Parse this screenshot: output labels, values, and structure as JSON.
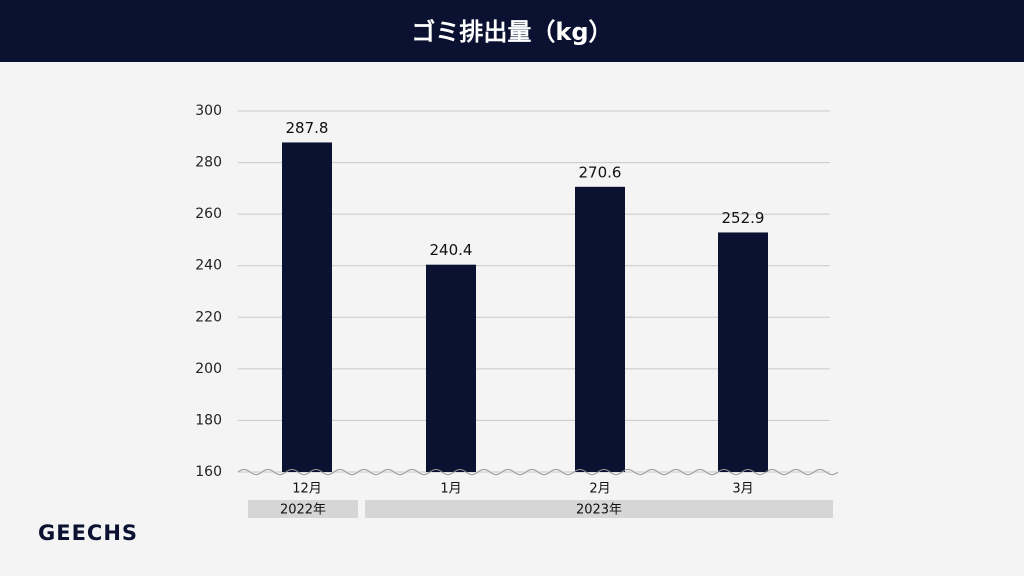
{
  "chart_data": {
    "type": "bar",
    "title": "ゴミ排出量（kg）",
    "categories": [
      "12月",
      "1月",
      "2月",
      "3月"
    ],
    "values": [
      287.8,
      240.4,
      270.6,
      252.9
    ],
    "color": "#0b1130",
    "groups": [
      "2022年",
      "2023年"
    ],
    "ylim": [
      160,
      300
    ],
    "yticks": [
      160,
      180,
      200,
      220,
      240,
      260,
      280,
      300
    ],
    "grid": true
  },
  "brand": "GEECHS"
}
